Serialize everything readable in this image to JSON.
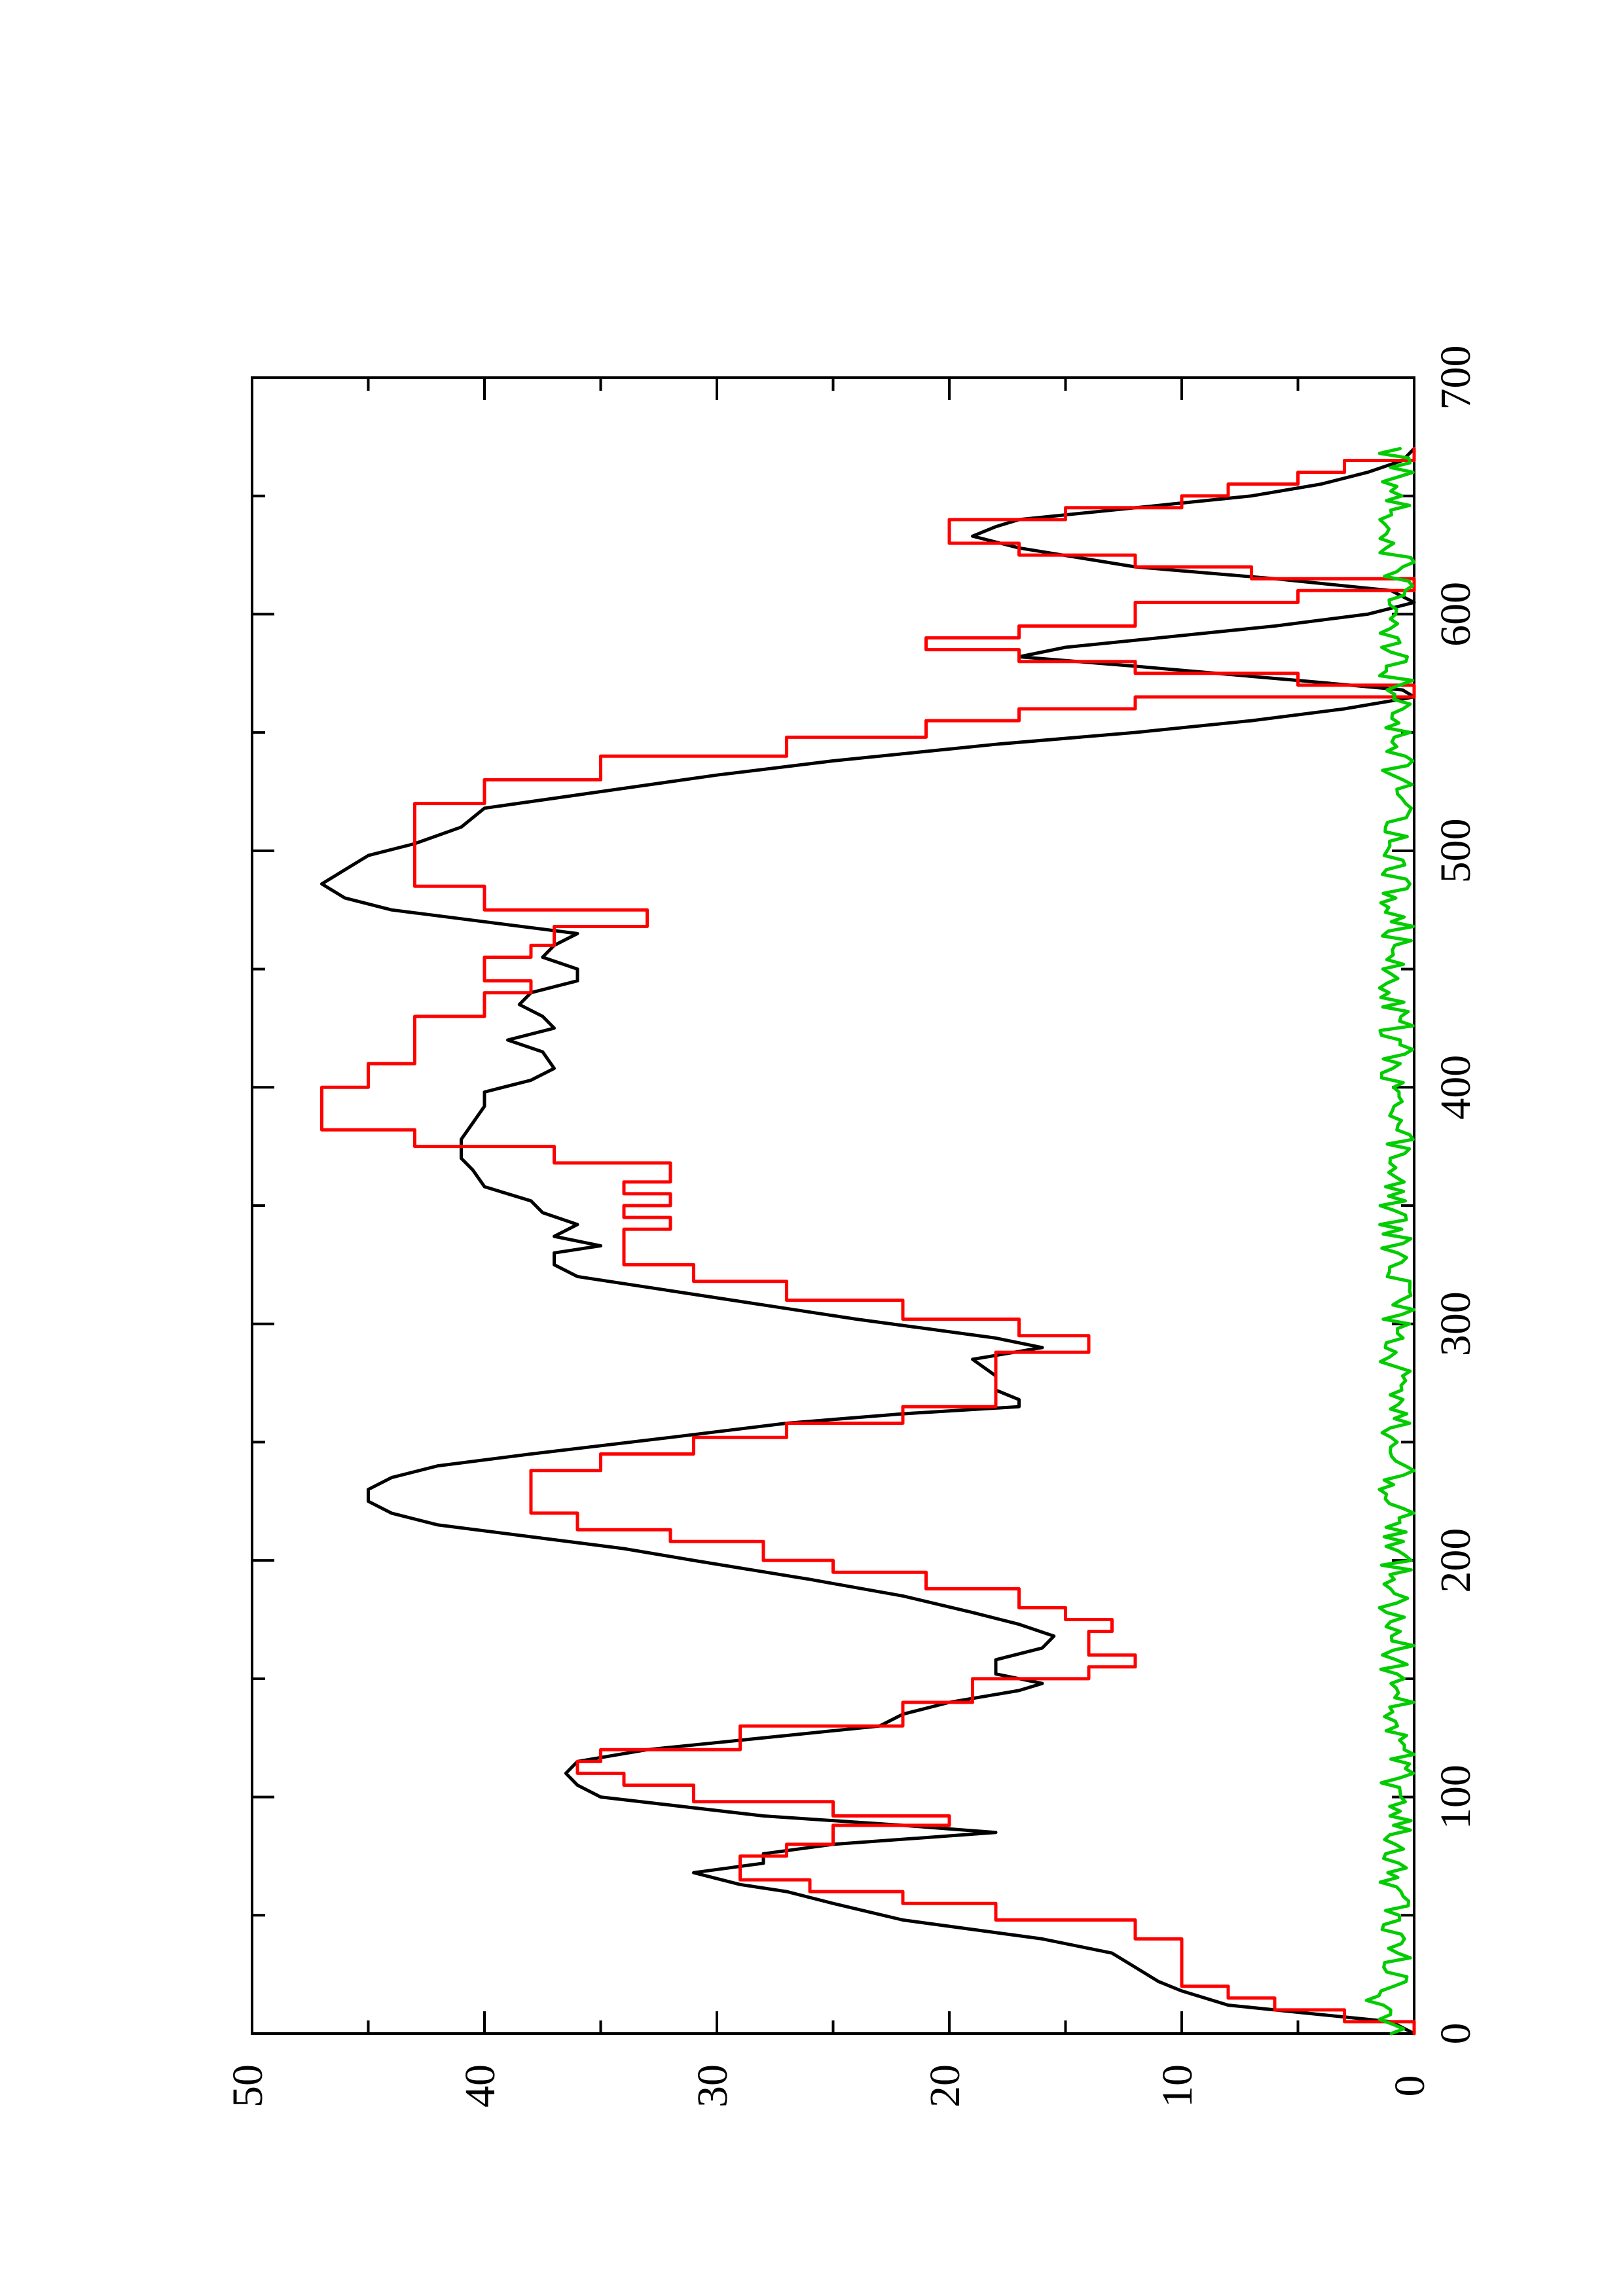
{
  "chart_data": {
    "type": "line",
    "orientation": "rotated-90-ccw",
    "xlabel": "",
    "ylabel": "",
    "xlim": [
      0,
      700
    ],
    "ylim": [
      0,
      50
    ],
    "x_ticks": [
      0,
      100,
      200,
      300,
      400,
      500,
      600,
      700
    ],
    "y_ticks": [
      0,
      10,
      20,
      30,
      40,
      50
    ],
    "grid": false,
    "legend": "none",
    "series": [
      {
        "color": "#000000",
        "style": "line",
        "points": [
          [
            0,
            0
          ],
          [
            5,
            1
          ],
          [
            8,
            4
          ],
          [
            12,
            8
          ],
          [
            18,
            10
          ],
          [
            22,
            11
          ],
          [
            28,
            12
          ],
          [
            34,
            13
          ],
          [
            40,
            16
          ],
          [
            48,
            22
          ],
          [
            55,
            25
          ],
          [
            60,
            27
          ],
          [
            63,
            29
          ],
          [
            68,
            31
          ],
          [
            72,
            28
          ],
          [
            76,
            28
          ],
          [
            80,
            25
          ],
          [
            85,
            18
          ],
          [
            88,
            22
          ],
          [
            92,
            28
          ],
          [
            100,
            35
          ],
          [
            105,
            36
          ],
          [
            110,
            36.5
          ],
          [
            115,
            36
          ],
          [
            120,
            33
          ],
          [
            126,
            27
          ],
          [
            130,
            23
          ],
          [
            135,
            22
          ],
          [
            140,
            20
          ],
          [
            145,
            17
          ],
          [
            148,
            16
          ],
          [
            152,
            18
          ],
          [
            158,
            18
          ],
          [
            163,
            16
          ],
          [
            168,
            15.5
          ],
          [
            173,
            17
          ],
          [
            178,
            19
          ],
          [
            185,
            22
          ],
          [
            192,
            26
          ],
          [
            200,
            31
          ],
          [
            205,
            34
          ],
          [
            210,
            38
          ],
          [
            215,
            42
          ],
          [
            220,
            44
          ],
          [
            225,
            45
          ],
          [
            230,
            45
          ],
          [
            235,
            44
          ],
          [
            240,
            42
          ],
          [
            245,
            38
          ],
          [
            252,
            32
          ],
          [
            258,
            27
          ],
          [
            262,
            22
          ],
          [
            265,
            17
          ],
          [
            268,
            17
          ],
          [
            272,
            18
          ],
          [
            278,
            18
          ],
          [
            285,
            19
          ],
          [
            290,
            16
          ],
          [
            294,
            18
          ],
          [
            298,
            21
          ],
          [
            302,
            24
          ],
          [
            308,
            28
          ],
          [
            314,
            32
          ],
          [
            320,
            36
          ],
          [
            325,
            37
          ],
          [
            330,
            37
          ],
          [
            333,
            35
          ],
          [
            337,
            37
          ],
          [
            342,
            36
          ],
          [
            347,
            37.5
          ],
          [
            352,
            38
          ],
          [
            358,
            40
          ],
          [
            365,
            40.5
          ],
          [
            370,
            41
          ],
          [
            378,
            41
          ],
          [
            385,
            40.5
          ],
          [
            392,
            40
          ],
          [
            398,
            40
          ],
          [
            403,
            38
          ],
          [
            408,
            37
          ],
          [
            415,
            37.5
          ],
          [
            420,
            39
          ],
          [
            425,
            37
          ],
          [
            430,
            37.5
          ],
          [
            435,
            38.5
          ],
          [
            440,
            38
          ],
          [
            445,
            36
          ],
          [
            450,
            36
          ],
          [
            455,
            37.5
          ],
          [
            460,
            37
          ],
          [
            465,
            36
          ],
          [
            470,
            40
          ],
          [
            475,
            44
          ],
          [
            480,
            46
          ],
          [
            486,
            47
          ],
          [
            492,
            46
          ],
          [
            498,
            45
          ],
          [
            503,
            43
          ],
          [
            510,
            41
          ],
          [
            518,
            40
          ],
          [
            525,
            35
          ],
          [
            532,
            30
          ],
          [
            538,
            25
          ],
          [
            545,
            18
          ],
          [
            550,
            12
          ],
          [
            555,
            7
          ],
          [
            560,
            3
          ],
          [
            565,
            0
          ],
          [
            568,
            0.5
          ],
          [
            572,
            5
          ],
          [
            578,
            12
          ],
          [
            582,
            17
          ],
          [
            586,
            15
          ],
          [
            590,
            11
          ],
          [
            595,
            6
          ],
          [
            600,
            2
          ],
          [
            605,
            0
          ],
          [
            610,
            1
          ],
          [
            615,
            6
          ],
          [
            620,
            12
          ],
          [
            628,
            17
          ],
          [
            633,
            19
          ],
          [
            637,
            18
          ],
          [
            640,
            17
          ],
          [
            645,
            12
          ],
          [
            650,
            7
          ],
          [
            655,
            4
          ],
          [
            660,
            2
          ],
          [
            665,
            0.5
          ],
          [
            670,
            0
          ]
        ]
      },
      {
        "color": "#ff0000",
        "style": "step",
        "points": [
          [
            0,
            0
          ],
          [
            5,
            3
          ],
          [
            10,
            6
          ],
          [
            15,
            8
          ],
          [
            20,
            10
          ],
          [
            40,
            12
          ],
          [
            48,
            18
          ],
          [
            55,
            22
          ],
          [
            60,
            26
          ],
          [
            65,
            29
          ],
          [
            70,
            29
          ],
          [
            75,
            27
          ],
          [
            80,
            25
          ],
          [
            88,
            20
          ],
          [
            92,
            25
          ],
          [
            98,
            31
          ],
          [
            105,
            34
          ],
          [
            110,
            36
          ],
          [
            115,
            35
          ],
          [
            120,
            29
          ],
          [
            130,
            22
          ],
          [
            140,
            19
          ],
          [
            150,
            14
          ],
          [
            155,
            12
          ],
          [
            160,
            14
          ],
          [
            170,
            13
          ],
          [
            175,
            15
          ],
          [
            180,
            17
          ],
          [
            188,
            21
          ],
          [
            195,
            25
          ],
          [
            200,
            28
          ],
          [
            208,
            32
          ],
          [
            213,
            36
          ],
          [
            220,
            38
          ],
          [
            230,
            38
          ],
          [
            238,
            35
          ],
          [
            245,
            31
          ],
          [
            252,
            27
          ],
          [
            258,
            22
          ],
          [
            265,
            18
          ],
          [
            272,
            18
          ],
          [
            280,
            18
          ],
          [
            288,
            14
          ],
          [
            295,
            17
          ],
          [
            302,
            22
          ],
          [
            310,
            27
          ],
          [
            318,
            31
          ],
          [
            325,
            34
          ],
          [
            335,
            34
          ],
          [
            340,
            32
          ],
          [
            345,
            34
          ],
          [
            350,
            32
          ],
          [
            355,
            34
          ],
          [
            360,
            32
          ],
          [
            368,
            37
          ],
          [
            375,
            43
          ],
          [
            382,
            47
          ],
          [
            392,
            47
          ],
          [
            400,
            45
          ],
          [
            410,
            43
          ],
          [
            420,
            43
          ],
          [
            430,
            40
          ],
          [
            440,
            38
          ],
          [
            445,
            40
          ],
          [
            450,
            40
          ],
          [
            455,
            38
          ],
          [
            460,
            37
          ],
          [
            468,
            33
          ],
          [
            475,
            40
          ],
          [
            485,
            43
          ],
          [
            500,
            43
          ],
          [
            510,
            43
          ],
          [
            520,
            40
          ],
          [
            530,
            35
          ],
          [
            540,
            27
          ],
          [
            548,
            21
          ],
          [
            555,
            17
          ],
          [
            560,
            12
          ],
          [
            565,
            0
          ],
          [
            570,
            5
          ],
          [
            575,
            12
          ],
          [
            580,
            17
          ],
          [
            585,
            21
          ],
          [
            590,
            17
          ],
          [
            595,
            12
          ],
          [
            605,
            5
          ],
          [
            610,
            0
          ],
          [
            615,
            7
          ],
          [
            620,
            12
          ],
          [
            625,
            17
          ],
          [
            630,
            20
          ],
          [
            635,
            20
          ],
          [
            640,
            15
          ],
          [
            645,
            10
          ],
          [
            650,
            8
          ],
          [
            655,
            5
          ],
          [
            660,
            3
          ],
          [
            665,
            0
          ],
          [
            670,
            0
          ]
        ]
      },
      {
        "color": "#00cc00",
        "style": "line",
        "noise_amplitude": 1.5,
        "points_spacing": 2,
        "xlim": [
          0,
          670
        ]
      }
    ]
  }
}
